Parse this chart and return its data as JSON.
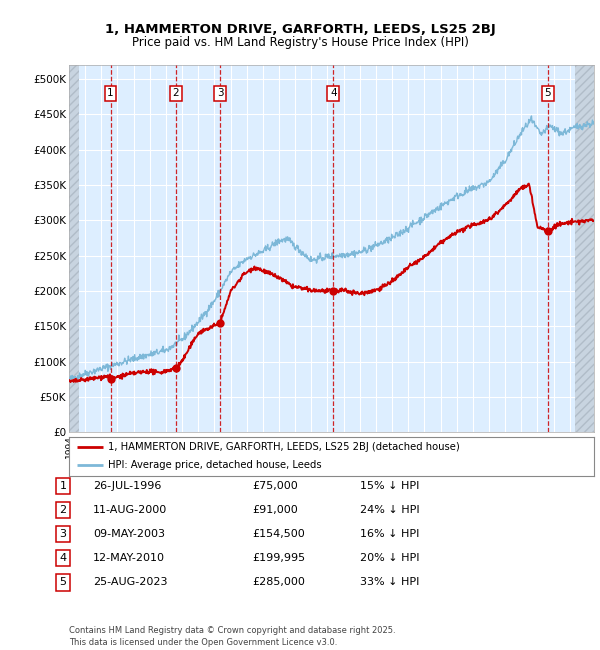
{
  "title1": "1, HAMMERTON DRIVE, GARFORTH, LEEDS, LS25 2BJ",
  "title2": "Price paid vs. HM Land Registry's House Price Index (HPI)",
  "legend_line1": "1, HAMMERTON DRIVE, GARFORTH, LEEDS, LS25 2BJ (detached house)",
  "legend_line2": "HPI: Average price, detached house, Leeds",
  "footer": "Contains HM Land Registry data © Crown copyright and database right 2025.\nThis data is licensed under the Open Government Licence v3.0.",
  "xlim": [
    1994.0,
    2026.5
  ],
  "ylim": [
    0,
    520000
  ],
  "yticks": [
    0,
    50000,
    100000,
    150000,
    200000,
    250000,
    300000,
    350000,
    400000,
    450000,
    500000
  ],
  "ytick_labels": [
    "£0",
    "£50K",
    "£100K",
    "£150K",
    "£200K",
    "£250K",
    "£300K",
    "£350K",
    "£400K",
    "£450K",
    "£500K"
  ],
  "hpi_color": "#7db8d8",
  "price_color": "#cc0000",
  "dashed_color": "#cc0000",
  "bg_color": "#ddeeff",
  "transaction_dates": [
    1996.57,
    2000.61,
    2003.36,
    2010.36,
    2023.65
  ],
  "transaction_prices": [
    75000,
    91000,
    154500,
    199995,
    285000
  ],
  "transaction_labels": [
    "1",
    "2",
    "3",
    "4",
    "5"
  ],
  "table_data": [
    [
      "1",
      "26-JUL-1996",
      "£75,000",
      "15% ↓ HPI"
    ],
    [
      "2",
      "11-AUG-2000",
      "£91,000",
      "24% ↓ HPI"
    ],
    [
      "3",
      "09-MAY-2003",
      "£154,500",
      "16% ↓ HPI"
    ],
    [
      "4",
      "12-MAY-2010",
      "£199,995",
      "20% ↓ HPI"
    ],
    [
      "5",
      "25-AUG-2023",
      "£285,000",
      "33% ↓ HPI"
    ]
  ]
}
